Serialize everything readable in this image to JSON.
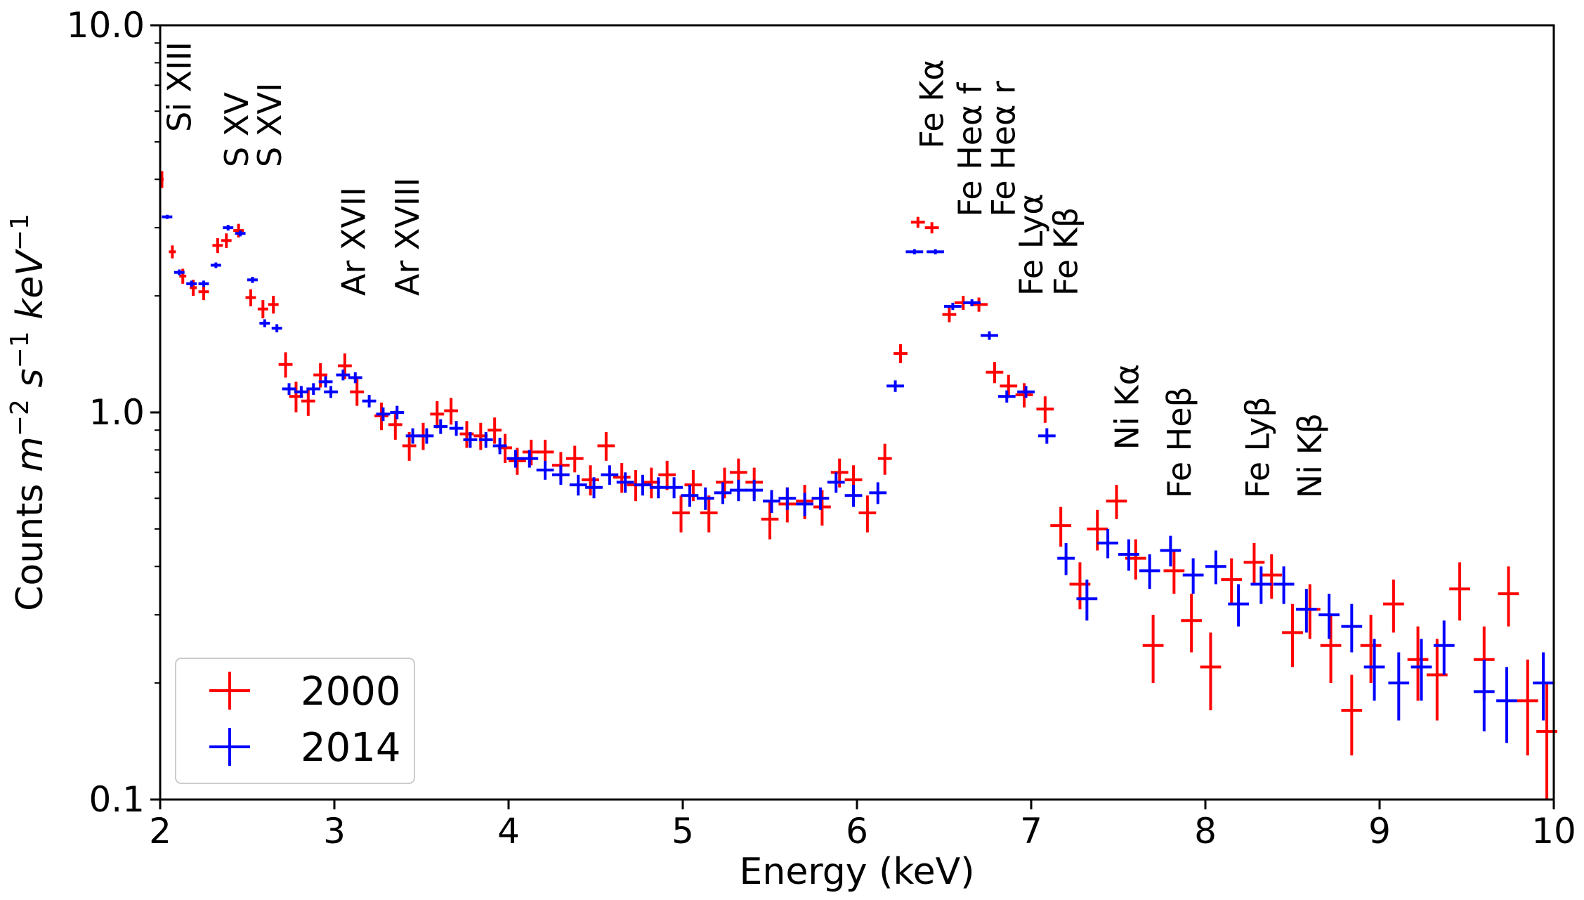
{
  "chart_data": {
    "type": "scatter",
    "title": "",
    "xlabel": "Energy (keV)",
    "ylabel": {
      "prefix": "Counts ",
      "m": "m",
      "m_exp": "−2",
      "s": " s",
      "s_exp": "−1",
      "kev": " keV",
      "kev_exp": "−1"
    },
    "xlim": [
      2,
      10
    ],
    "ylim": [
      0.1,
      10.0
    ],
    "yscale": "log",
    "x_ticks": [
      2,
      3,
      4,
      5,
      6,
      7,
      8,
      9,
      10
    ],
    "x_tick_labels": [
      "2",
      "3",
      "4",
      "5",
      "6",
      "7",
      "8",
      "9",
      "10"
    ],
    "y_ticks": [
      0.1,
      1.0,
      10.0
    ],
    "y_tick_labels": [
      "0.1",
      "1.0",
      "10.0"
    ],
    "legend_position": "lower-left",
    "series": [
      {
        "name": "2000",
        "color": "#ff0000",
        "points": [
          [
            2.01,
            4.0,
            0.01,
            0.2
          ],
          [
            2.07,
            2.6,
            0.02,
            0.1
          ],
          [
            2.13,
            2.25,
            0.02,
            0.1
          ],
          [
            2.19,
            2.1,
            0.02,
            0.1
          ],
          [
            2.25,
            2.05,
            0.03,
            0.1
          ],
          [
            2.33,
            2.7,
            0.03,
            0.12
          ],
          [
            2.38,
            2.78,
            0.03,
            0.12
          ],
          [
            2.45,
            2.95,
            0.03,
            0.12
          ],
          [
            2.52,
            1.98,
            0.03,
            0.1
          ],
          [
            2.59,
            1.85,
            0.03,
            0.1
          ],
          [
            2.65,
            1.9,
            0.03,
            0.1
          ],
          [
            2.72,
            1.33,
            0.04,
            0.1
          ],
          [
            2.78,
            1.1,
            0.04,
            0.1
          ],
          [
            2.85,
            1.07,
            0.04,
            0.09
          ],
          [
            2.92,
            1.25,
            0.04,
            0.09
          ],
          [
            3.06,
            1.32,
            0.04,
            0.1
          ],
          [
            3.13,
            1.13,
            0.04,
            0.09
          ],
          [
            3.27,
            0.98,
            0.04,
            0.08
          ],
          [
            3.35,
            0.93,
            0.04,
            0.08
          ],
          [
            3.43,
            0.82,
            0.04,
            0.07
          ],
          [
            3.51,
            0.87,
            0.04,
            0.07
          ],
          [
            3.59,
            0.99,
            0.04,
            0.08
          ],
          [
            3.67,
            1.01,
            0.04,
            0.08
          ],
          [
            3.76,
            0.88,
            0.04,
            0.07
          ],
          [
            3.84,
            0.87,
            0.04,
            0.07
          ],
          [
            3.92,
            0.9,
            0.04,
            0.07
          ],
          [
            3.98,
            0.81,
            0.04,
            0.07
          ],
          [
            4.05,
            0.75,
            0.05,
            0.06
          ],
          [
            4.13,
            0.79,
            0.05,
            0.06
          ],
          [
            4.21,
            0.79,
            0.05,
            0.06
          ],
          [
            4.3,
            0.73,
            0.05,
            0.06
          ],
          [
            4.38,
            0.76,
            0.05,
            0.06
          ],
          [
            4.47,
            0.67,
            0.05,
            0.06
          ],
          [
            4.56,
            0.82,
            0.05,
            0.07
          ],
          [
            4.65,
            0.68,
            0.05,
            0.06
          ],
          [
            4.73,
            0.65,
            0.05,
            0.06
          ],
          [
            4.82,
            0.66,
            0.05,
            0.06
          ],
          [
            4.91,
            0.69,
            0.05,
            0.06
          ],
          [
            4.99,
            0.55,
            0.05,
            0.06
          ],
          [
            5.06,
            0.65,
            0.05,
            0.06
          ],
          [
            5.15,
            0.55,
            0.05,
            0.06
          ],
          [
            5.24,
            0.66,
            0.05,
            0.06
          ],
          [
            5.32,
            0.7,
            0.05,
            0.06
          ],
          [
            5.41,
            0.66,
            0.05,
            0.06
          ],
          [
            5.5,
            0.53,
            0.05,
            0.06
          ],
          [
            5.6,
            0.58,
            0.05,
            0.06
          ],
          [
            5.7,
            0.59,
            0.05,
            0.06
          ],
          [
            5.8,
            0.57,
            0.05,
            0.06
          ],
          [
            5.9,
            0.7,
            0.05,
            0.06
          ],
          [
            5.98,
            0.67,
            0.05,
            0.06
          ],
          [
            6.06,
            0.55,
            0.05,
            0.06
          ],
          [
            6.16,
            0.76,
            0.04,
            0.07
          ],
          [
            6.25,
            1.42,
            0.04,
            0.08
          ],
          [
            6.35,
            3.1,
            0.04,
            0.1
          ],
          [
            6.43,
            3.0,
            0.04,
            0.1
          ],
          [
            6.53,
            1.79,
            0.04,
            0.08
          ],
          [
            6.61,
            1.92,
            0.05,
            0.08
          ],
          [
            6.7,
            1.9,
            0.05,
            0.08
          ],
          [
            6.79,
            1.27,
            0.05,
            0.08
          ],
          [
            6.87,
            1.17,
            0.05,
            0.08
          ],
          [
            6.96,
            1.11,
            0.05,
            0.08
          ],
          [
            7.08,
            1.02,
            0.05,
            0.08
          ],
          [
            7.17,
            0.51,
            0.06,
            0.06
          ],
          [
            7.28,
            0.36,
            0.06,
            0.05
          ],
          [
            7.38,
            0.5,
            0.06,
            0.06
          ],
          [
            7.49,
            0.59,
            0.06,
            0.06
          ],
          [
            7.6,
            0.42,
            0.06,
            0.05
          ],
          [
            7.7,
            0.25,
            0.06,
            0.05
          ],
          [
            7.82,
            0.39,
            0.06,
            0.05
          ],
          [
            7.92,
            0.29,
            0.06,
            0.05
          ],
          [
            8.03,
            0.22,
            0.06,
            0.05
          ],
          [
            8.15,
            0.37,
            0.06,
            0.05
          ],
          [
            8.28,
            0.41,
            0.06,
            0.05
          ],
          [
            8.38,
            0.38,
            0.06,
            0.05
          ],
          [
            8.5,
            0.27,
            0.06,
            0.05
          ],
          [
            8.6,
            0.31,
            0.06,
            0.05
          ],
          [
            8.72,
            0.25,
            0.06,
            0.05
          ],
          [
            8.84,
            0.17,
            0.06,
            0.04
          ],
          [
            8.95,
            0.25,
            0.06,
            0.05
          ],
          [
            9.08,
            0.32,
            0.06,
            0.05
          ],
          [
            9.22,
            0.23,
            0.06,
            0.05
          ],
          [
            9.33,
            0.21,
            0.06,
            0.05
          ],
          [
            9.46,
            0.35,
            0.06,
            0.06
          ],
          [
            9.6,
            0.23,
            0.06,
            0.05
          ],
          [
            9.74,
            0.34,
            0.06,
            0.06
          ],
          [
            9.85,
            0.18,
            0.06,
            0.05
          ],
          [
            9.96,
            0.15,
            0.06,
            0.05
          ]
        ]
      },
      {
        "name": "2014",
        "color": "#0000ff",
        "points": [
          [
            2.04,
            3.2,
            0.03,
            0.04
          ],
          [
            2.11,
            2.3,
            0.03,
            0.04
          ],
          [
            2.18,
            2.15,
            0.03,
            0.04
          ],
          [
            2.25,
            2.15,
            0.03,
            0.04
          ],
          [
            2.32,
            2.4,
            0.03,
            0.04
          ],
          [
            2.39,
            3.0,
            0.03,
            0.05
          ],
          [
            2.46,
            2.9,
            0.03,
            0.05
          ],
          [
            2.53,
            2.2,
            0.03,
            0.04
          ],
          [
            2.6,
            1.7,
            0.03,
            0.04
          ],
          [
            2.67,
            1.65,
            0.03,
            0.04
          ],
          [
            2.74,
            1.15,
            0.04,
            0.04
          ],
          [
            2.81,
            1.13,
            0.04,
            0.04
          ],
          [
            2.88,
            1.15,
            0.04,
            0.04
          ],
          [
            2.95,
            1.2,
            0.04,
            0.04
          ],
          [
            2.98,
            1.13,
            0.04,
            0.04
          ],
          [
            3.05,
            1.25,
            0.04,
            0.04
          ],
          [
            3.12,
            1.23,
            0.04,
            0.04
          ],
          [
            3.2,
            1.07,
            0.04,
            0.04
          ],
          [
            3.28,
            0.99,
            0.04,
            0.04
          ],
          [
            3.36,
            1.0,
            0.04,
            0.04
          ],
          [
            3.45,
            0.87,
            0.04,
            0.04
          ],
          [
            3.53,
            0.87,
            0.04,
            0.04
          ],
          [
            3.61,
            0.92,
            0.04,
            0.04
          ],
          [
            3.7,
            0.91,
            0.04,
            0.04
          ],
          [
            3.78,
            0.85,
            0.04,
            0.04
          ],
          [
            3.87,
            0.85,
            0.04,
            0.04
          ],
          [
            3.95,
            0.82,
            0.04,
            0.04
          ],
          [
            4.04,
            0.76,
            0.05,
            0.04
          ],
          [
            4.12,
            0.76,
            0.05,
            0.04
          ],
          [
            4.21,
            0.71,
            0.05,
            0.04
          ],
          [
            4.3,
            0.69,
            0.05,
            0.04
          ],
          [
            4.4,
            0.65,
            0.05,
            0.04
          ],
          [
            4.49,
            0.64,
            0.05,
            0.04
          ],
          [
            4.58,
            0.69,
            0.05,
            0.04
          ],
          [
            4.67,
            0.66,
            0.05,
            0.04
          ],
          [
            4.77,
            0.65,
            0.05,
            0.04
          ],
          [
            4.86,
            0.64,
            0.05,
            0.04
          ],
          [
            4.95,
            0.64,
            0.05,
            0.04
          ],
          [
            5.04,
            0.61,
            0.05,
            0.04
          ],
          [
            5.13,
            0.6,
            0.05,
            0.04
          ],
          [
            5.23,
            0.62,
            0.05,
            0.04
          ],
          [
            5.32,
            0.63,
            0.05,
            0.04
          ],
          [
            5.41,
            0.63,
            0.05,
            0.04
          ],
          [
            5.51,
            0.59,
            0.05,
            0.04
          ],
          [
            5.6,
            0.6,
            0.05,
            0.04
          ],
          [
            5.7,
            0.58,
            0.05,
            0.04
          ],
          [
            5.79,
            0.6,
            0.05,
            0.04
          ],
          [
            5.88,
            0.66,
            0.05,
            0.04
          ],
          [
            5.98,
            0.61,
            0.05,
            0.04
          ],
          [
            6.12,
            0.62,
            0.05,
            0.04
          ],
          [
            6.22,
            1.17,
            0.05,
            0.04
          ],
          [
            6.33,
            2.6,
            0.05,
            0.04
          ],
          [
            6.45,
            2.6,
            0.05,
            0.04
          ],
          [
            6.55,
            1.88,
            0.05,
            0.04
          ],
          [
            6.66,
            1.92,
            0.05,
            0.04
          ],
          [
            6.76,
            1.58,
            0.05,
            0.04
          ],
          [
            6.86,
            1.1,
            0.05,
            0.04
          ],
          [
            6.97,
            1.13,
            0.05,
            0.04
          ],
          [
            7.09,
            0.87,
            0.05,
            0.04
          ],
          [
            7.2,
            0.42,
            0.05,
            0.04
          ],
          [
            7.32,
            0.33,
            0.06,
            0.04
          ],
          [
            7.44,
            0.46,
            0.06,
            0.04
          ],
          [
            7.56,
            0.43,
            0.06,
            0.04
          ],
          [
            7.68,
            0.39,
            0.06,
            0.04
          ],
          [
            7.8,
            0.44,
            0.06,
            0.04
          ],
          [
            7.93,
            0.38,
            0.06,
            0.04
          ],
          [
            8.06,
            0.4,
            0.06,
            0.04
          ],
          [
            8.19,
            0.32,
            0.06,
            0.04
          ],
          [
            8.32,
            0.36,
            0.06,
            0.04
          ],
          [
            8.45,
            0.36,
            0.06,
            0.04
          ],
          [
            8.58,
            0.31,
            0.06,
            0.04
          ],
          [
            8.71,
            0.3,
            0.06,
            0.04
          ],
          [
            8.84,
            0.28,
            0.06,
            0.04
          ],
          [
            8.97,
            0.22,
            0.06,
            0.04
          ],
          [
            9.11,
            0.2,
            0.06,
            0.04
          ],
          [
            9.24,
            0.22,
            0.06,
            0.04
          ],
          [
            9.37,
            0.25,
            0.06,
            0.04
          ],
          [
            9.6,
            0.19,
            0.06,
            0.04
          ],
          [
            9.73,
            0.18,
            0.06,
            0.04
          ],
          [
            9.94,
            0.2,
            0.06,
            0.04
          ]
        ]
      }
    ],
    "line_annotations": [
      {
        "label": "Si XIII",
        "x": 2.11,
        "y_bottom": 5.3
      },
      {
        "label": "S XV",
        "x": 2.44,
        "y_bottom": 4.3
      },
      {
        "label": "S XVI",
        "x": 2.63,
        "y_bottom": 4.3
      },
      {
        "label": "Ar XVII",
        "x": 3.11,
        "y_bottom": 2.0
      },
      {
        "label": "Ar XVIII",
        "x": 3.42,
        "y_bottom": 2.0
      },
      {
        "label": "Fe Kα",
        "x": 6.43,
        "y_bottom": 4.8
      },
      {
        "label": "Fe Heα f",
        "x": 6.65,
        "y_bottom": 3.2
      },
      {
        "label": "Fe Heα r",
        "x": 6.84,
        "y_bottom": 3.2
      },
      {
        "label": "Fe Lyα",
        "x": 7.0,
        "y_bottom": 2.0
      },
      {
        "label": "Fe Kβ",
        "x": 7.2,
        "y_bottom": 2.0
      },
      {
        "label": "Ni Kα",
        "x": 7.55,
        "y_bottom": 0.8
      },
      {
        "label": "Fe Heβ",
        "x": 7.85,
        "y_bottom": 0.6
      },
      {
        "label": "Fe Lyβ",
        "x": 8.3,
        "y_bottom": 0.6
      },
      {
        "label": "Ni Kβ",
        "x": 8.6,
        "y_bottom": 0.6
      }
    ]
  }
}
